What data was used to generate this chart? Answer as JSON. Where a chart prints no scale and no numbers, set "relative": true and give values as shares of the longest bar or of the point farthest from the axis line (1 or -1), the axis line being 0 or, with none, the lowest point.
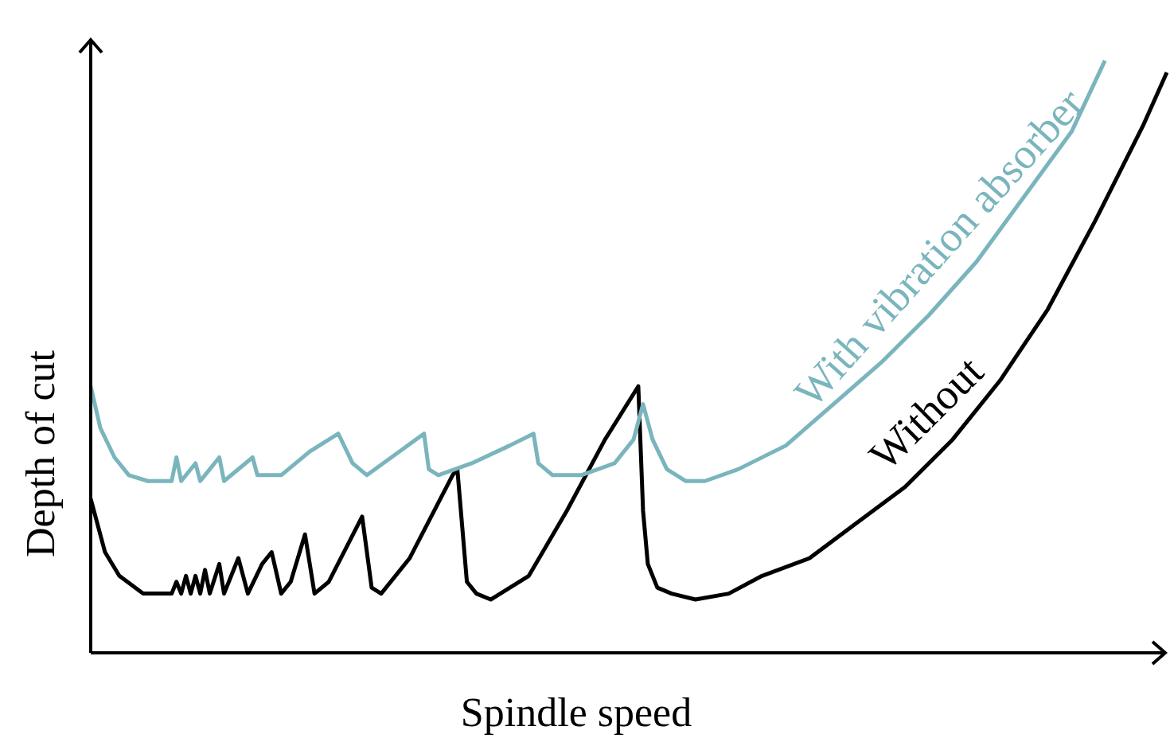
{
  "chart_data": {
    "type": "line",
    "relative": true,
    "xlabel": "Spindle speed",
    "ylabel": "Depth of cut",
    "legend": false,
    "marker": "none",
    "line_style": "solid",
    "categories": [
      null,
      null,
      null,
      null,
      null,
      null,
      null,
      null,
      null,
      null,
      null,
      null,
      null,
      null,
      null,
      null,
      null,
      null,
      null,
      null,
      null,
      null,
      null,
      null,
      null,
      null,
      null,
      null,
      null,
      null,
      null,
      null,
      null,
      null,
      null,
      null,
      null,
      null,
      null,
      null,
      null,
      null,
      null,
      null,
      null,
      null,
      null,
      null,
      null,
      null,
      null,
      null,
      null,
      null,
      null,
      null,
      null,
      null,
      null,
      null,
      null,
      null,
      null,
      null,
      null,
      null,
      null,
      null,
      null,
      null,
      null,
      null,
      null,
      null,
      null,
      null,
      null,
      null,
      null,
      null,
      null,
      null,
      null,
      null,
      null,
      null,
      null,
      null,
      null,
      null,
      null,
      null,
      null,
      null,
      null,
      null,
      null,
      null,
      null,
      null,
      null,
      null,
      null,
      null,
      null,
      null,
      null,
      null,
      null,
      null,
      null,
      null,
      null,
      null,
      null,
      null,
      null,
      null,
      null,
      null,
      null,
      null,
      null,
      null,
      null,
      null,
      null,
      null,
      null,
      null,
      null,
      null,
      null,
      null,
      null,
      null,
      null,
      null,
      null,
      null,
      null,
      null,
      null,
      null,
      null,
      null,
      null,
      null,
      null,
      null,
      null,
      null,
      null,
      null,
      null,
      null,
      null,
      null,
      null,
      null,
      null,
      null,
      null,
      null,
      null,
      null,
      null,
      null,
      null,
      null,
      null,
      null,
      null,
      null,
      null,
      null,
      null,
      null,
      null,
      null,
      null,
      null,
      null,
      null,
      null,
      null,
      null,
      null,
      null,
      null,
      null,
      null,
      null,
      null,
      null,
      null,
      null,
      null,
      null,
      null,
      null,
      null,
      null,
      null,
      null,
      null,
      null,
      null,
      null,
      null,
      null,
      null,
      null,
      null,
      null,
      null,
      null,
      null,
      null,
      null,
      null,
      null,
      null,
      null,
      null,
      null,
      null
    ],
    "series": [
      {
        "name": "With vibration absorber",
        "color": "#7ab5bd",
        "values": [
          0.45,
          null,
          0.38,
          null,
          null,
          0.33,
          null,
          null,
          0.3,
          null,
          null,
          null,
          0.29,
          null,
          null,
          null,
          null,
          0.29,
          0.33,
          0.29,
          null,
          null,
          0.32,
          0.29,
          null,
          null,
          null,
          0.33,
          0.29,
          null,
          null,
          null,
          null,
          null,
          0.33,
          0.3,
          null,
          null,
          null,
          null,
          0.3,
          null,
          null,
          null,
          null,
          null,
          0.34,
          null,
          null,
          null,
          null,
          null,
          0.37,
          null,
          null,
          0.32,
          null,
          null,
          0.3,
          null,
          null,
          null,
          null,
          null,
          null,
          null,
          null,
          null,
          null,
          null,
          0.37,
          0.31,
          null,
          0.3,
          null,
          null,
          null,
          null,
          null,
          null,
          0.32,
          null,
          null,
          null,
          null,
          null,
          null,
          null,
          0.35,
          null,
          null,
          null,
          null,
          0.37,
          0.32,
          null,
          null,
          0.3,
          null,
          null,
          null,
          null,
          null,
          0.3,
          null,
          null,
          null,
          null,
          null,
          null,
          0.32,
          null,
          null,
          null,
          0.36,
          null,
          0.42,
          null,
          0.36,
          null,
          null,
          0.31,
          null,
          null,
          null,
          0.29,
          null,
          null,
          null,
          0.29,
          null,
          null,
          null,
          null,
          null,
          null,
          0.31,
          null,
          null,
          null,
          null,
          null,
          null,
          null,
          null,
          null,
          0.35,
          null,
          null,
          null,
          null,
          null,
          null,
          null,
          null,
          null,
          0.42,
          null,
          null,
          null,
          null,
          null,
          null,
          null,
          null,
          null,
          0.49,
          null,
          null,
          null,
          null,
          null,
          null,
          null,
          null,
          null,
          0.57,
          null,
          null,
          null,
          null,
          null,
          null,
          null,
          null,
          null,
          0.66,
          null,
          null,
          null,
          null,
          null,
          null,
          null,
          null,
          null,
          0.77,
          null,
          null,
          null,
          null,
          null,
          null,
          null,
          null,
          null,
          0.88,
          null,
          null,
          null,
          null,
          null,
          null,
          1.0,
          null,
          null,
          null,
          null,
          null,
          null,
          null,
          null,
          null,
          null,
          null,
          null,
          null
        ]
      },
      {
        "name": "Without",
        "color": "#000000",
        "values": [
          0.26,
          null,
          null,
          0.17,
          null,
          null,
          0.13,
          null,
          null,
          null,
          null,
          0.1,
          null,
          null,
          null,
          null,
          null,
          0.1,
          0.12,
          0.1,
          0.13,
          0.1,
          0.13,
          0.1,
          0.14,
          0.1,
          null,
          0.15,
          0.1,
          null,
          null,
          0.16,
          null,
          0.1,
          null,
          null,
          0.15,
          null,
          0.17,
          null,
          0.1,
          null,
          0.12,
          null,
          null,
          0.2,
          null,
          0.1,
          null,
          null,
          0.12,
          null,
          null,
          null,
          null,
          null,
          null,
          0.23,
          null,
          0.11,
          null,
          0.1,
          null,
          null,
          null,
          null,
          null,
          0.16,
          null,
          null,
          null,
          null,
          null,
          null,
          null,
          null,
          0.3,
          0.31,
          null,
          0.12,
          null,
          0.1,
          null,
          null,
          0.09,
          null,
          null,
          null,
          null,
          null,
          null,
          null,
          0.13,
          null,
          null,
          null,
          null,
          null,
          null,
          null,
          0.24,
          null,
          null,
          null,
          null,
          null,
          null,
          null,
          0.36,
          null,
          null,
          null,
          null,
          null,
          null,
          0.45,
          0.24,
          0.15,
          null,
          0.11,
          null,
          null,
          0.1,
          null,
          null,
          null,
          null,
          0.09,
          null,
          null,
          null,
          null,
          null,
          null,
          0.1,
          null,
          null,
          null,
          null,
          null,
          null,
          0.13,
          null,
          null,
          null,
          null,
          null,
          null,
          null,
          null,
          null,
          0.16,
          null,
          null,
          null,
          null,
          null,
          null,
          null,
          null,
          null,
          0.22,
          null,
          null,
          null,
          null,
          null,
          null,
          null,
          null,
          null,
          0.28,
          null,
          null,
          null,
          null,
          null,
          null,
          null,
          null,
          null,
          0.36,
          null,
          null,
          null,
          null,
          null,
          null,
          null,
          null,
          null,
          0.46,
          null,
          null,
          null,
          null,
          null,
          null,
          null,
          null,
          null,
          0.58,
          null,
          null,
          null,
          null,
          null,
          null,
          null,
          null,
          null,
          0.73,
          null,
          null,
          null,
          null,
          null,
          null,
          null,
          null,
          null,
          0.89,
          null,
          null,
          null,
          null,
          0.98
        ]
      }
    ]
  }
}
